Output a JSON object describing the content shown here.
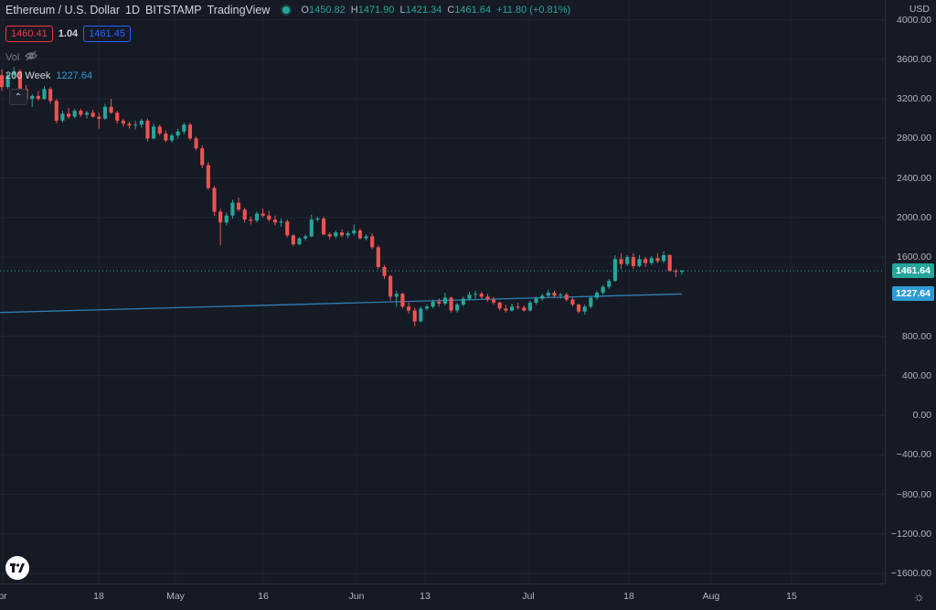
{
  "header": {
    "symbol": "Ethereum / U.S. Dollar",
    "interval": "1D",
    "exchange": "BITSTAMP",
    "source": "TradingView",
    "ohlc": {
      "o_label": "O",
      "o": "1450.82",
      "h_label": "H",
      "h": "1471.90",
      "l_label": "L",
      "l": "1421.34",
      "c_label": "C",
      "c": "1461.64",
      "change": "+11.80 (+0.81%)"
    },
    "bid": "1460.41",
    "spread": "1.04",
    "ask": "1461.45",
    "vol_label": "Vol",
    "indicator_name": "200 Week",
    "indicator_value": "1227.64"
  },
  "axis": {
    "currency": "USD",
    "price_ticks": [
      "4000.00",
      "3600.00",
      "3200.00",
      "2800.00",
      "2400.00",
      "2000.00",
      "1600.00",
      "800.00",
      "400.00",
      "0.00",
      "−400.00",
      "−800.00",
      "−1200.00",
      "−1600.00"
    ],
    "time_ticks": [
      "pr",
      "18",
      "May",
      "16",
      "Jun",
      "13",
      "Jul",
      "18",
      "Aug",
      "15"
    ],
    "last_price_badge": "1461.64",
    "ma_badge": "1227.64"
  },
  "colors": {
    "up": "#26a69a",
    "down": "#ef5350",
    "ma": "#2f7fb4",
    "bg": "#161a25"
  },
  "chart_data": {
    "type": "candlestick",
    "series": [
      {
        "name": "candles",
        "values": [
          [
            3440,
            3500,
            3280,
            3320
          ],
          [
            3320,
            3460,
            3300,
            3440
          ],
          [
            3440,
            3520,
            3400,
            3480
          ],
          [
            3480,
            3500,
            3250,
            3300
          ],
          [
            3300,
            3340,
            3170,
            3200
          ],
          [
            3200,
            3250,
            3120,
            3230
          ],
          [
            3230,
            3280,
            3180,
            3200
          ],
          [
            3200,
            3330,
            3190,
            3300
          ],
          [
            3300,
            3320,
            3150,
            3180
          ],
          [
            3180,
            3200,
            2950,
            2980
          ],
          [
            2980,
            3080,
            2960,
            3050
          ],
          [
            3050,
            3110,
            3000,
            3020
          ],
          [
            3020,
            3100,
            3000,
            3080
          ],
          [
            3080,
            3100,
            3020,
            3040
          ],
          [
            3040,
            3080,
            3000,
            3060
          ],
          [
            3060,
            3090,
            3010,
            3020
          ],
          [
            3020,
            3060,
            2900,
            3000
          ],
          [
            3000,
            3150,
            2990,
            3120
          ],
          [
            3120,
            3200,
            3050,
            3060
          ],
          [
            3060,
            3080,
            2950,
            2980
          ],
          [
            2980,
            3000,
            2920,
            2950
          ],
          [
            2950,
            2970,
            2900,
            2930
          ],
          [
            2930,
            2980,
            2890,
            2940
          ],
          [
            2940,
            3000,
            2910,
            2980
          ],
          [
            2980,
            3000,
            2770,
            2800
          ],
          [
            2800,
            2950,
            2790,
            2920
          ],
          [
            2920,
            2940,
            2830,
            2850
          ],
          [
            2850,
            2880,
            2760,
            2780
          ],
          [
            2780,
            2850,
            2760,
            2830
          ],
          [
            2830,
            2900,
            2800,
            2870
          ],
          [
            2870,
            2960,
            2840,
            2940
          ],
          [
            2940,
            2960,
            2780,
            2800
          ],
          [
            2800,
            2820,
            2680,
            2700
          ],
          [
            2700,
            2730,
            2500,
            2530
          ],
          [
            2530,
            2560,
            2280,
            2300
          ],
          [
            2300,
            2320,
            2020,
            2060
          ],
          [
            2060,
            2090,
            1720,
            1950
          ],
          [
            1950,
            2050,
            1920,
            2020
          ],
          [
            2020,
            2180,
            1990,
            2150
          ],
          [
            2150,
            2200,
            2060,
            2080
          ],
          [
            2080,
            2100,
            1950,
            1980
          ],
          [
            1980,
            2010,
            1930,
            1970
          ],
          [
            1970,
            2060,
            1950,
            2040
          ],
          [
            2040,
            2090,
            2000,
            2020
          ],
          [
            2020,
            2070,
            1960,
            1980
          ],
          [
            1980,
            2020,
            1920,
            1950
          ],
          [
            1950,
            1990,
            1910,
            1960
          ],
          [
            1960,
            1980,
            1800,
            1820
          ],
          [
            1820,
            1830,
            1710,
            1730
          ],
          [
            1730,
            1800,
            1720,
            1790
          ],
          [
            1790,
            1830,
            1770,
            1810
          ],
          [
            1810,
            2030,
            1800,
            1980
          ],
          [
            1980,
            2010,
            1960,
            1990
          ],
          [
            1990,
            2010,
            1820,
            1830
          ],
          [
            1830,
            1850,
            1780,
            1810
          ],
          [
            1810,
            1870,
            1790,
            1850
          ],
          [
            1850,
            1880,
            1800,
            1820
          ],
          [
            1820,
            1860,
            1790,
            1840
          ],
          [
            1840,
            1930,
            1820,
            1870
          ],
          [
            1870,
            1890,
            1780,
            1790
          ],
          [
            1790,
            1830,
            1770,
            1810
          ],
          [
            1810,
            1840,
            1680,
            1700
          ],
          [
            1700,
            1720,
            1480,
            1500
          ],
          [
            1500,
            1520,
            1380,
            1410
          ],
          [
            1410,
            1420,
            1160,
            1200
          ],
          [
            1200,
            1260,
            1100,
            1230
          ],
          [
            1230,
            1240,
            1080,
            1100
          ],
          [
            1100,
            1140,
            1030,
            1060
          ],
          [
            1060,
            1090,
            900,
            950
          ],
          [
            950,
            1100,
            940,
            1080
          ],
          [
            1080,
            1120,
            1060,
            1100
          ],
          [
            1100,
            1170,
            1080,
            1150
          ],
          [
            1150,
            1180,
            1100,
            1130
          ],
          [
            1130,
            1240,
            1110,
            1190
          ],
          [
            1190,
            1200,
            1040,
            1060
          ],
          [
            1060,
            1140,
            1040,
            1120
          ],
          [
            1120,
            1200,
            1100,
            1180
          ],
          [
            1180,
            1250,
            1160,
            1220
          ],
          [
            1220,
            1260,
            1180,
            1230
          ],
          [
            1230,
            1250,
            1180,
            1200
          ],
          [
            1200,
            1230,
            1150,
            1170
          ],
          [
            1170,
            1200,
            1120,
            1140
          ],
          [
            1140,
            1150,
            1060,
            1080
          ],
          [
            1080,
            1120,
            1040,
            1060
          ],
          [
            1060,
            1130,
            1050,
            1100
          ],
          [
            1100,
            1140,
            1070,
            1090
          ],
          [
            1090,
            1110,
            1050,
            1060
          ],
          [
            1060,
            1160,
            1050,
            1140
          ],
          [
            1140,
            1200,
            1120,
            1180
          ],
          [
            1180,
            1230,
            1160,
            1210
          ],
          [
            1210,
            1270,
            1190,
            1240
          ],
          [
            1240,
            1260,
            1190,
            1210
          ],
          [
            1210,
            1240,
            1180,
            1220
          ],
          [
            1220,
            1240,
            1150,
            1170
          ],
          [
            1170,
            1190,
            1100,
            1120
          ],
          [
            1120,
            1130,
            1030,
            1050
          ],
          [
            1050,
            1120,
            1020,
            1100
          ],
          [
            1100,
            1200,
            1080,
            1190
          ],
          [
            1190,
            1260,
            1170,
            1240
          ],
          [
            1240,
            1320,
            1220,
            1300
          ],
          [
            1300,
            1380,
            1280,
            1360
          ],
          [
            1360,
            1620,
            1350,
            1580
          ],
          [
            1580,
            1640,
            1480,
            1530
          ],
          [
            1530,
            1620,
            1510,
            1600
          ],
          [
            1600,
            1640,
            1480,
            1510
          ],
          [
            1510,
            1620,
            1500,
            1580
          ],
          [
            1580,
            1600,
            1500,
            1540
          ],
          [
            1540,
            1610,
            1520,
            1590
          ],
          [
            1590,
            1640,
            1540,
            1560
          ],
          [
            1560,
            1660,
            1540,
            1620
          ],
          [
            1620,
            1630,
            1450,
            1460
          ],
          [
            1460,
            1480,
            1400,
            1450
          ],
          [
            1450.82,
            1471.9,
            1421.34,
            1461.64
          ]
        ]
      },
      {
        "name": "200 Week",
        "values": [
          1040,
          1227.64
        ]
      }
    ],
    "ylim": [
      -1700,
      4200
    ],
    "last_price": 1461.64,
    "ma_last": 1227.64
  }
}
